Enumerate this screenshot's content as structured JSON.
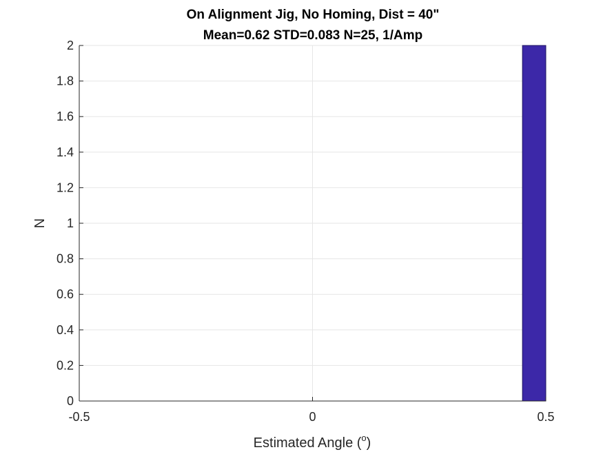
{
  "chart_data": {
    "type": "bar",
    "title": "On Alignment Jig, No Homing, Dist = 40\"",
    "subtitle": "Mean=0.62 STD=0.083 N=25, 1/Amp",
    "xlabel": {
      "text": "Estimated Angle (",
      "superscript": "o",
      "suffix": ")"
    },
    "ylabel": "N",
    "xlim": [
      -0.5,
      0.5
    ],
    "ylim": [
      0,
      2
    ],
    "xticks": [
      -0.5,
      0,
      0.5
    ],
    "xtick_labels": [
      "-0.5",
      "0",
      "0.5"
    ],
    "yticks": [
      0,
      0.2,
      0.4,
      0.6,
      0.8,
      1,
      1.2,
      1.4,
      1.6,
      1.8,
      2
    ],
    "ytick_labels": [
      "0",
      "0.2",
      "0.4",
      "0.6",
      "0.8",
      "1",
      "1.2",
      "1.4",
      "1.6",
      "1.8",
      "2"
    ],
    "grid": true,
    "bins": [
      {
        "x_start": 0.45,
        "x_end": 0.5,
        "value": 2
      }
    ],
    "colors": {
      "bar_fill": "#3C28A8",
      "bar_edge": "#1E1460",
      "grid": "#E6E6E6",
      "axis": "#262626"
    }
  }
}
